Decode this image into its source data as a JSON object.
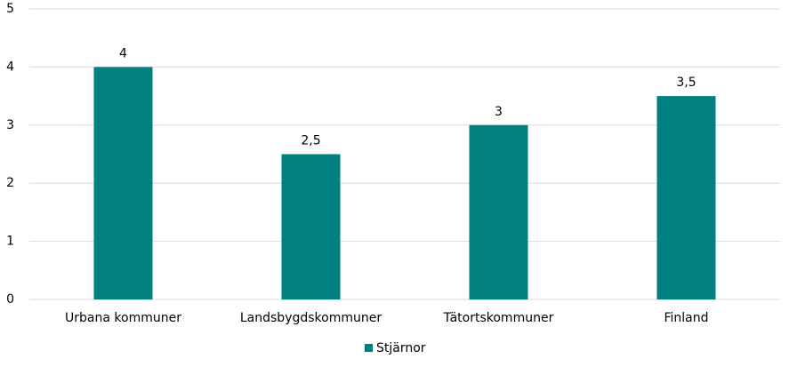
{
  "chart_data": {
    "type": "bar",
    "categories": [
      "Urbana kommuner",
      "Landsbygdskommuner",
      "Tätortskommuner",
      "Finland"
    ],
    "series": [
      {
        "name": "Stjärnor",
        "color": "#008080",
        "values": [
          4,
          2.5,
          3,
          3.5
        ],
        "value_labels": [
          "4",
          "2,5",
          "3",
          "3,5"
        ]
      }
    ],
    "ylim": [
      0,
      5
    ],
    "yticks": [
      0,
      1,
      2,
      3,
      4,
      5
    ],
    "grid": true,
    "legend": "bottom"
  }
}
